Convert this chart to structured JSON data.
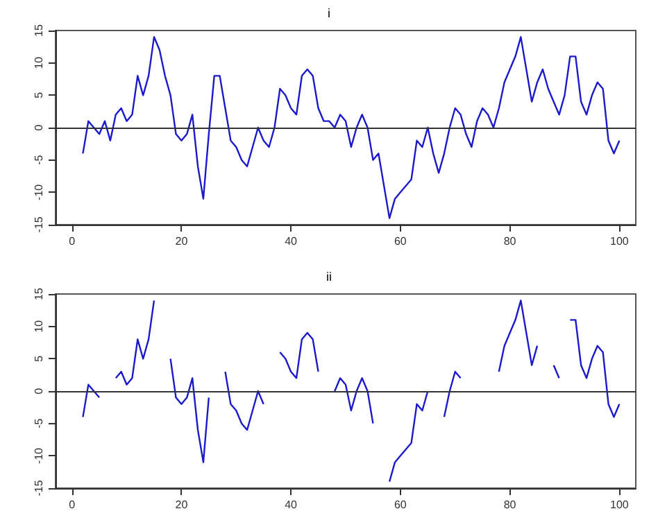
{
  "chart_data": [
    {
      "type": "line",
      "title": "i",
      "x": [
        2,
        3,
        4,
        5,
        6,
        7,
        8,
        9,
        10,
        11,
        12,
        13,
        14,
        15,
        16,
        17,
        18,
        19,
        20,
        21,
        22,
        23,
        24,
        25,
        26,
        27,
        28,
        29,
        30,
        31,
        32,
        33,
        34,
        35,
        36,
        37,
        38,
        39,
        40,
        41,
        42,
        43,
        44,
        45,
        46,
        47,
        48,
        49,
        50,
        51,
        52,
        53,
        54,
        55,
        56,
        57,
        58,
        59,
        60,
        61,
        62,
        63,
        64,
        65,
        66,
        67,
        68,
        69,
        70,
        71,
        72,
        73,
        74,
        75,
        76,
        77,
        78,
        79,
        80,
        81,
        82,
        83,
        84,
        85,
        86,
        87,
        88,
        89,
        90,
        91,
        92,
        93,
        94,
        95,
        96,
        97,
        98,
        99,
        100
      ],
      "series": [
        {
          "color": "#1a1acc",
          "values": [
            -4,
            1,
            0,
            -1,
            1,
            -2,
            2,
            3,
            1,
            2,
            8,
            5,
            8,
            14,
            12,
            8,
            5,
            -1,
            -2,
            -1,
            2,
            -6,
            -11,
            -1,
            8,
            8,
            3,
            -2,
            -3,
            -5,
            -6,
            -3,
            0,
            -2,
            -3,
            0,
            6,
            5,
            3,
            2,
            8,
            9,
            8,
            3,
            1,
            1,
            0,
            2,
            1,
            -3,
            0,
            2,
            0,
            -5,
            -4,
            -9,
            -14,
            -11,
            -10,
            -9,
            -8,
            -2,
            -3,
            0,
            -4,
            -7,
            -4,
            0,
            3,
            2,
            -1,
            -3,
            1,
            3,
            2,
            0,
            3,
            7,
            9,
            11,
            14,
            9,
            4,
            7,
            9,
            6,
            4,
            2,
            5,
            11,
            11,
            4,
            2,
            5,
            7,
            6,
            -2,
            -4,
            -2
          ]
        }
      ],
      "xlim": [
        -3,
        103
      ],
      "xticks": [
        0,
        20,
        40,
        60,
        80,
        100
      ],
      "ylim": [
        -15,
        15
      ],
      "yticks": [
        -15,
        -10,
        -5,
        0,
        5,
        10,
        15
      ],
      "ref_lines": [
        {
          "axis": "y",
          "value": 0,
          "color": "#333333"
        }
      ]
    },
    {
      "type": "line",
      "title": "ii",
      "x": [
        2,
        3,
        4,
        5,
        6,
        7,
        8,
        9,
        10,
        11,
        12,
        13,
        14,
        15,
        16,
        17,
        18,
        19,
        20,
        21,
        22,
        23,
        24,
        25,
        26,
        27,
        28,
        29,
        30,
        31,
        32,
        33,
        34,
        35,
        36,
        37,
        38,
        39,
        40,
        41,
        42,
        43,
        44,
        45,
        46,
        47,
        48,
        49,
        50,
        51,
        52,
        53,
        54,
        55,
        56,
        57,
        58,
        59,
        60,
        61,
        62,
        63,
        64,
        65,
        66,
        67,
        68,
        69,
        70,
        71,
        72,
        73,
        74,
        75,
        76,
        77,
        78,
        79,
        80,
        81,
        82,
        83,
        84,
        85,
        86,
        87,
        88,
        89,
        90,
        91,
        92,
        93,
        94,
        95,
        96,
        97,
        98,
        99,
        100
      ],
      "series": [
        {
          "color": "#1a1acc",
          "values": [
            -4,
            1,
            0,
            -1,
            null,
            null,
            2,
            3,
            1,
            2,
            8,
            5,
            8,
            14,
            null,
            null,
            5,
            -1,
            -2,
            -1,
            2,
            -6,
            -11,
            -1,
            null,
            null,
            3,
            -2,
            -3,
            -5,
            -6,
            -3,
            0,
            -2,
            null,
            null,
            6,
            5,
            3,
            2,
            8,
            9,
            8,
            3,
            null,
            null,
            0,
            2,
            1,
            -3,
            0,
            2,
            0,
            -5,
            null,
            null,
            -14,
            -11,
            -10,
            -9,
            -8,
            -2,
            -3,
            0,
            null,
            null,
            -4,
            0,
            3,
            2,
            null,
            null,
            null,
            null,
            null,
            null,
            3,
            7,
            9,
            11,
            14,
            9,
            4,
            7,
            null,
            null,
            4,
            2,
            null,
            11,
            11,
            4,
            2,
            5,
            7,
            6,
            -2,
            -4,
            -2
          ]
        }
      ],
      "xlim": [
        -3,
        103
      ],
      "xticks": [
        0,
        20,
        40,
        60,
        80,
        100
      ],
      "ylim": [
        -15,
        15
      ],
      "yticks": [
        -15,
        -10,
        -5,
        0,
        5,
        10,
        15
      ],
      "ref_lines": [
        {
          "axis": "y",
          "value": 0,
          "color": "#333333"
        }
      ]
    }
  ]
}
